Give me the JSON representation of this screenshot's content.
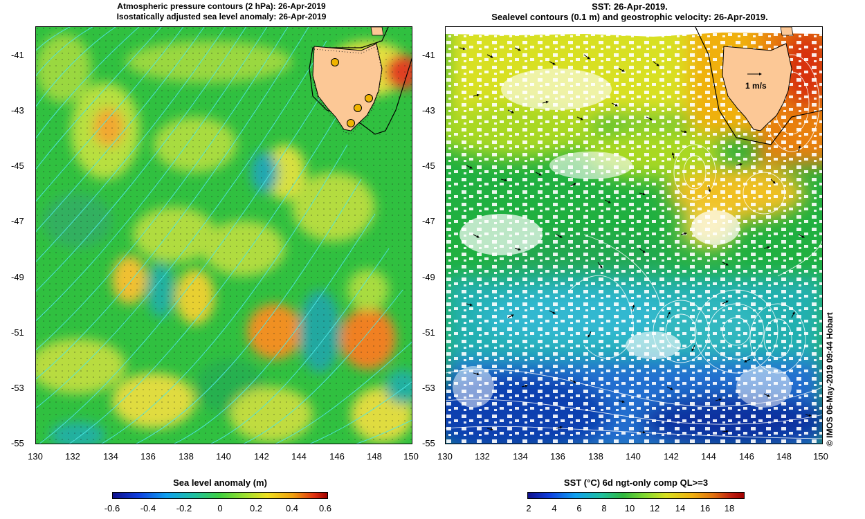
{
  "left_panel": {
    "title_line1": "Atmospheric pressure contours (2 hPa): 26-Apr-2019",
    "title_line2": "Isostatically adjusted sea level anomaly: 26-Apr-2019",
    "colorbar_title": "Sea level anomaly (m)",
    "colorbar_ticks": [
      "-0.6",
      "-0.4",
      "-0.2",
      "0",
      "0.2",
      "0.4",
      "0.6"
    ]
  },
  "right_panel": {
    "title_line1": "SST: 26-Apr-2019.",
    "title_line2": "Sealevel contours (0.1 m) and geostrophic velocity: 26-Apr-2019.",
    "velocity_label": "1 m/s",
    "colorbar_title": "SST (°C) 6d ngt-only comp QL>=3",
    "colorbar_ticks": [
      "2",
      "4",
      "6",
      "8",
      "10",
      "12",
      "14",
      "16",
      "18"
    ]
  },
  "axes": {
    "lat_ticks": [
      "-41",
      "-43",
      "-45",
      "-47",
      "-49",
      "-51",
      "-53",
      "-55"
    ],
    "lon_ticks": [
      "130",
      "132",
      "134",
      "136",
      "138",
      "140",
      "142",
      "144",
      "146",
      "148",
      "150"
    ],
    "lon_range": [
      130,
      150
    ],
    "lat_range": [
      -40,
      -55
    ]
  },
  "copyright": "©  IMOS 06-May-2019 09:44 Hobart",
  "colors": {
    "land": "#fcc896",
    "ocean_green": "#33c833",
    "contour_cyan": "#50e6e6",
    "contour_white": "#ffffff",
    "station_marker": "#f0b400"
  }
}
